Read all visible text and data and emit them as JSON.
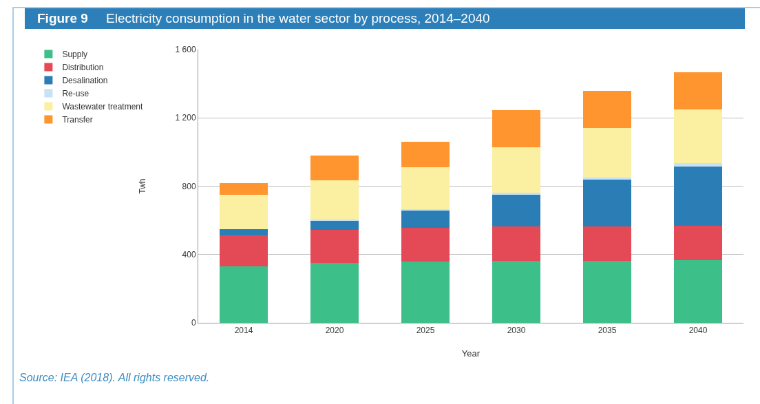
{
  "chart_data": {
    "type": "bar",
    "title": "Figure 9",
    "subtitle": "Electricity consumption in the water sector by process, 2014–2040",
    "xlabel": "Year",
    "ylabel": "Twh",
    "categories": [
      "2014",
      "2020",
      "2025",
      "2030",
      "2035",
      "2040"
    ],
    "series": [
      {
        "name": "Supply",
        "color": "#3dbf8a",
        "values": [
          330,
          350,
          357,
          362,
          362,
          367
        ]
      },
      {
        "name": "Distribution",
        "color": "#e34a55",
        "values": [
          180,
          195,
          201,
          203,
          203,
          202
        ]
      },
      {
        "name": "Desalination",
        "color": "#2a7db5",
        "values": [
          40,
          55,
          101,
          185,
          273,
          344
        ]
      },
      {
        "name": "Re-use",
        "color": "#c6e2f5",
        "values": [
          0,
          5,
          5,
          10,
          11,
          21
        ]
      },
      {
        "name": "Wastewater treatment",
        "color": "#fbefa2",
        "values": [
          200,
          228,
          245,
          267,
          290,
          314
        ]
      },
      {
        "name": "Transfer",
        "color": "#fe952f",
        "values": [
          70,
          146,
          149,
          218,
          219,
          219
        ]
      }
    ],
    "stacked": true,
    "ylim": [
      0,
      1600
    ],
    "yticks": [
      0,
      400,
      800,
      {
        "value": 1200,
        "label": "1 200"
      },
      {
        "value": 1600,
        "label": "1 600"
      }
    ],
    "grid": "y",
    "legend": "top left",
    "annotations": [
      "Source: IEA (2018). All rights reserved."
    ]
  }
}
